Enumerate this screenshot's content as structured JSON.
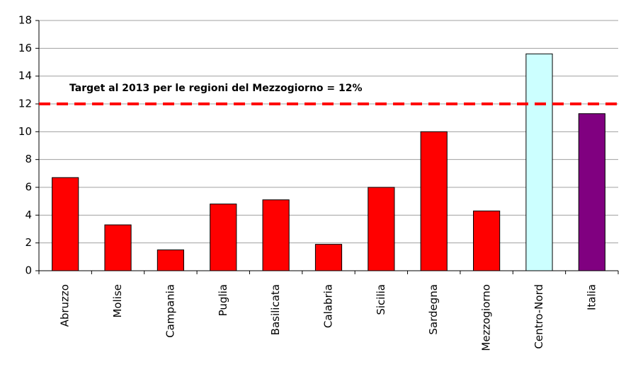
{
  "chart_data": {
    "type": "bar",
    "categories": [
      "Abruzzo",
      "Molise",
      "Campania",
      "Puglia",
      "Basilicata",
      "Calabria",
      "Sicilia",
      "Sardegna",
      "Mezzogiorno",
      "Centro-Nord",
      "Italia"
    ],
    "values": [
      6.7,
      3.3,
      1.5,
      4.8,
      5.1,
      1.9,
      6.0,
      10.0,
      4.3,
      15.6,
      11.3
    ],
    "colors": [
      "#ff0000",
      "#ff0000",
      "#ff0000",
      "#ff0000",
      "#ff0000",
      "#ff0000",
      "#ff0000",
      "#ff0000",
      "#ff0000",
      "#ccffff",
      "#800080"
    ],
    "ylim": [
      0,
      18
    ],
    "yticks": [
      0,
      2,
      4,
      6,
      8,
      10,
      12,
      14,
      16,
      18
    ],
    "grid": true,
    "reference_line": {
      "value": 12,
      "color": "#ff0000",
      "label": "Target al 2013 per le regioni del Mezzogiorno = 12%"
    }
  }
}
